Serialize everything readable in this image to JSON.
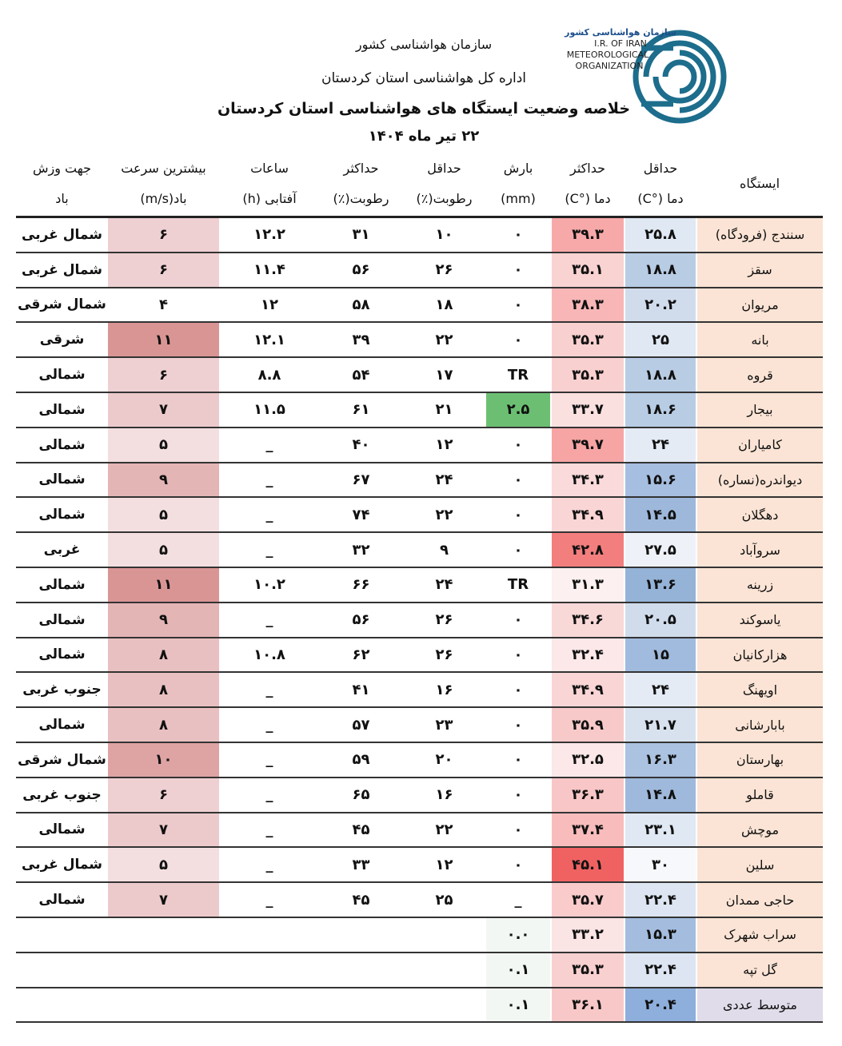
{
  "header": {
    "org": "سازمان هواشناسی کشور",
    "office": "اداره کل هواشناسی استان کردستان",
    "title": "خلاصه وضعیت ایستگاه های هواشناسی استان کردستان",
    "date": "۲۲ تیر ماه ۱۴۰۴"
  },
  "logo": {
    "fa": "سازمان هواشناسی کشور",
    "line1": "I.R. OF IRAN",
    "line2": "METEOROLOGICAL",
    "line3": "ORGANIZATION"
  },
  "table": {
    "columns": [
      [
        "ایستگاه"
      ],
      [
        "حداقل",
        "دما (°C)"
      ],
      [
        "حداکثر",
        "دما (°C)"
      ],
      [
        "بارش",
        "(mm)"
      ],
      [
        "حداقل",
        "رطوبت(٪)"
      ],
      [
        "حداکثر",
        "رطوبت(٪)"
      ],
      [
        "ساعات",
        "آفتابی (h)"
      ],
      [
        "بیشترین سرعت",
        "باد(m/s)"
      ],
      [
        "جهت وزش",
        "باد"
      ]
    ],
    "rows": [
      [
        "سنندج (فرودگاه)",
        "۲۵.۸",
        "۳۹.۳",
        "۰",
        "۱۰",
        "۳۱",
        "۱۲.۲",
        "۶",
        "شمال غربی"
      ],
      [
        "سقز",
        "۱۸.۸",
        "۳۵.۱",
        "۰",
        "۲۶",
        "۵۶",
        "۱۱.۴",
        "۶",
        "شمال غربی"
      ],
      [
        "مریوان",
        "۲۰.۲",
        "۳۸.۳",
        "۰",
        "۱۸",
        "۵۸",
        "۱۲",
        "۴",
        "شمال شرقی"
      ],
      [
        "بانه",
        "۲۵",
        "۳۵.۳",
        "۰",
        "۲۲",
        "۳۹",
        "۱۲.۱",
        "۱۱",
        "شرقی"
      ],
      [
        "قروه",
        "۱۸.۸",
        "۳۵.۳",
        "TR",
        "۱۷",
        "۵۴",
        "۸.۸",
        "۶",
        "شمالی"
      ],
      [
        "بیجار",
        "۱۸.۶",
        "۳۳.۷",
        "۲.۵",
        "۲۱",
        "۶۱",
        "۱۱.۵",
        "۷",
        "شمالی"
      ],
      [
        "کامیاران",
        "۲۴",
        "۳۹.۷",
        "۰",
        "۱۲",
        "۴۰",
        "_",
        "۵",
        "شمالی"
      ],
      [
        "دیواندره(نساره)",
        "۱۵.۶",
        "۳۴.۳",
        "۰",
        "۲۴",
        "۶۷",
        "_",
        "۹",
        "شمالی"
      ],
      [
        "دهگلان",
        "۱۴.۵",
        "۳۴.۹",
        "۰",
        "۲۲",
        "۷۴",
        "_",
        "۵",
        "شمالی"
      ],
      [
        "سروآباد",
        "۲۷.۵",
        "۴۲.۸",
        "۰",
        "۹",
        "۳۲",
        "_",
        "۵",
        "غربی"
      ],
      [
        "زرینه",
        "۱۳.۶",
        "۳۱.۳",
        "TR",
        "۲۴",
        "۶۶",
        "۱۰.۲",
        "۱۱",
        "شمالی"
      ],
      [
        "یاسوکند",
        "۲۰.۵",
        "۳۴.۶",
        "۰",
        "۲۶",
        "۵۶",
        "_",
        "۹",
        "شمالی"
      ],
      [
        "هزارکانیان",
        "۱۵",
        "۳۲.۴",
        "۰",
        "۲۶",
        "۶۲",
        "۱۰.۸",
        "۸",
        "شمالی"
      ],
      [
        "اویهنگ",
        "۲۴",
        "۳۴.۹",
        "۰",
        "۱۶",
        "۴۱",
        "_",
        "۸",
        "جنوب غربی"
      ],
      [
        "بابارشانی",
        "۲۱.۷",
        "۳۵.۹",
        "۰",
        "۲۳",
        "۵۷",
        "_",
        "۸",
        "شمالی"
      ],
      [
        "بهارستان",
        "۱۶.۳",
        "۳۲.۵",
        "۰",
        "۲۰",
        "۵۹",
        "_",
        "۱۰",
        "شمال شرقی"
      ],
      [
        "قاملو",
        "۱۴.۸",
        "۳۶.۳",
        "۰",
        "۱۶",
        "۶۵",
        "_",
        "۶",
        "جنوب غربی"
      ],
      [
        "موچش",
        "۲۳.۱",
        "۳۷.۴",
        "۰",
        "۲۲",
        "۴۵",
        "_",
        "۷",
        "شمالی"
      ],
      [
        "سلین",
        "۳۰",
        "۴۵.۱",
        "۰",
        "۱۲",
        "۳۳",
        "_",
        "۵",
        "شمال غربی"
      ],
      [
        "حاجی ممدان",
        "۲۲.۴",
        "۳۵.۷",
        "_",
        "۲۵",
        "۴۵",
        "_",
        "۷",
        "شمالی"
      ],
      [
        "سراب شهرک",
        "۱۵.۳",
        "۳۳.۲",
        "۰.۰"
      ],
      [
        "گل تپه",
        "۲۲.۴",
        "۳۵.۳",
        "۰.۱"
      ],
      [
        "متوسط عددی",
        "۲۰.۴",
        "۳۶.۱",
        "۰.۱"
      ]
    ]
  }
}
